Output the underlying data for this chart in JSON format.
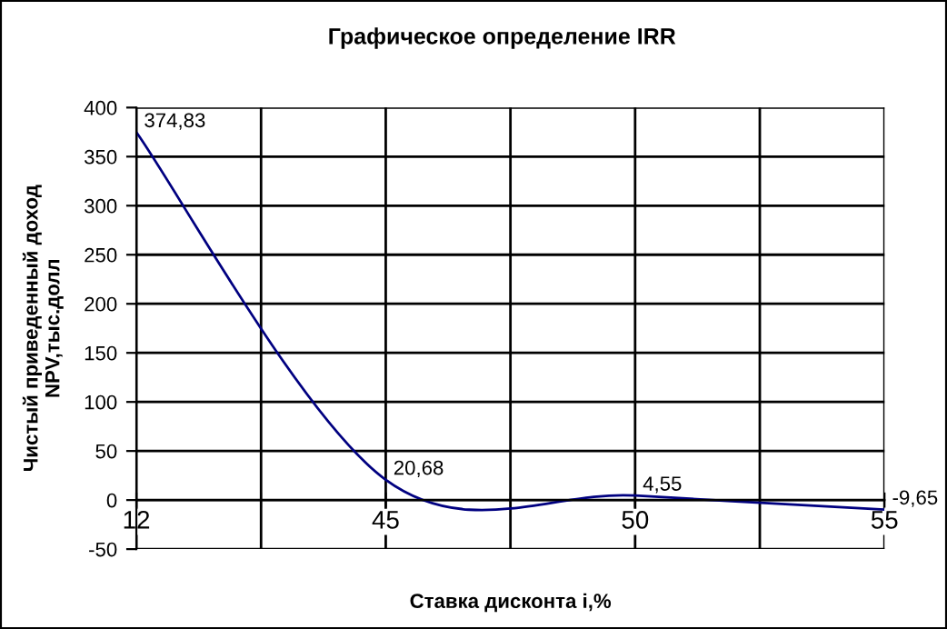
{
  "chart_data": {
    "type": "line",
    "title": "Графическое определение IRR",
    "xlabel": "Ставка дисконта i,%",
    "ylabel": "Чистый приведенный доход\nNPV,тыс.долл",
    "categories": [
      "12",
      "45",
      "50",
      "55"
    ],
    "series": [
      {
        "color": "#000080",
        "values": [
          374.83,
          20.68,
          4.55,
          -9.65
        ]
      }
    ],
    "value_labels": [
      "374,83",
      "20,68",
      "4,55",
      "-9,65"
    ],
    "ylim": [
      -50,
      400
    ],
    "yticks": [
      -50,
      0,
      50,
      100,
      150,
      200,
      250,
      300,
      350,
      400
    ],
    "grid": true,
    "marker": "none",
    "line_style": "solid"
  }
}
